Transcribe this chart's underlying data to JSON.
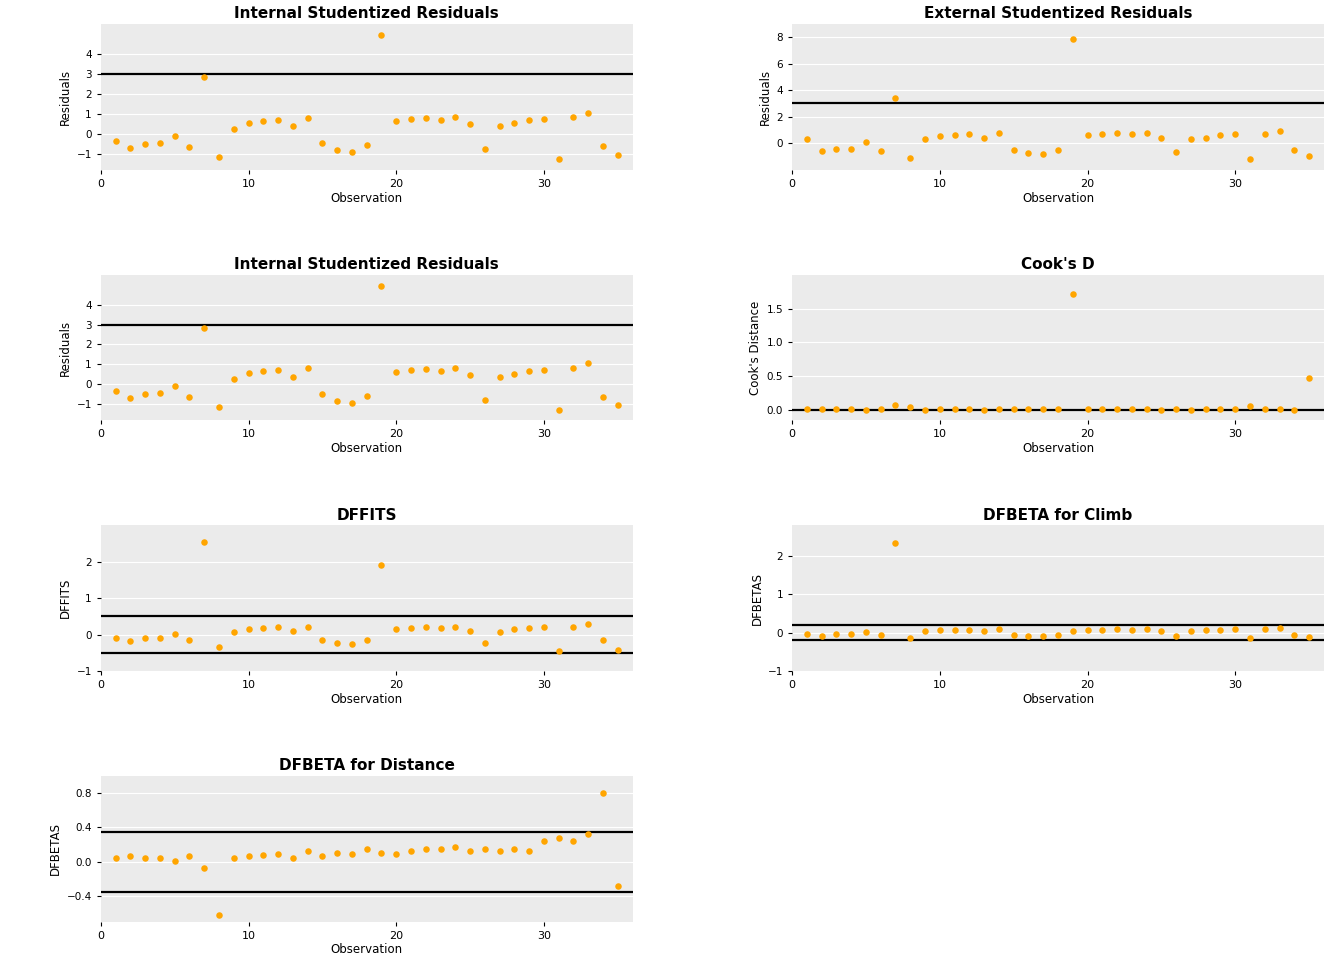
{
  "isr": [
    -0.35,
    -0.7,
    -0.5,
    -0.45,
    -0.1,
    -0.65,
    2.85,
    -1.15,
    0.25,
    0.55,
    0.65,
    0.7,
    0.38,
    0.8,
    -0.48,
    -0.82,
    -0.92,
    -0.58,
    4.95,
    0.62,
    0.72,
    0.78,
    0.68,
    0.82,
    0.48,
    -0.78,
    0.38,
    0.52,
    0.68,
    0.72,
    -1.28,
    0.82,
    1.05,
    -0.62,
    -1.05
  ],
  "esr": [
    0.3,
    -0.6,
    -0.4,
    -0.4,
    0.1,
    -0.6,
    3.45,
    -1.1,
    0.3,
    0.52,
    0.62,
    0.68,
    0.38,
    0.78,
    -0.48,
    -0.72,
    -0.8,
    -0.52,
    7.85,
    0.6,
    0.7,
    0.78,
    0.68,
    0.8,
    0.42,
    -0.7,
    0.32,
    0.42,
    0.62,
    0.68,
    -1.18,
    0.7,
    0.9,
    -0.52,
    -1.0
  ],
  "cooks": [
    0.01,
    0.02,
    0.01,
    0.01,
    0.0,
    0.02,
    0.08,
    0.05,
    0.0,
    0.01,
    0.01,
    0.01,
    0.0,
    0.01,
    0.01,
    0.02,
    0.02,
    0.01,
    1.72,
    0.01,
    0.01,
    0.01,
    0.01,
    0.01,
    0.0,
    0.02,
    0.0,
    0.01,
    0.01,
    0.01,
    0.06,
    0.01,
    0.02,
    0.0,
    0.48
  ],
  "dffits": [
    -0.1,
    -0.18,
    -0.1,
    -0.1,
    0.02,
    -0.16,
    2.55,
    -0.35,
    0.08,
    0.16,
    0.18,
    0.2,
    0.1,
    0.22,
    -0.15,
    -0.22,
    -0.25,
    -0.15,
    1.92,
    0.15,
    0.18,
    0.22,
    0.18,
    0.22,
    0.1,
    -0.22,
    0.08,
    0.15,
    0.18,
    0.2,
    -0.45,
    0.22,
    0.3,
    -0.15,
    -0.42
  ],
  "dfbeta_climb": [
    -0.04,
    -0.08,
    -0.04,
    -0.04,
    0.01,
    -0.07,
    2.35,
    -0.15,
    0.04,
    0.07,
    0.08,
    0.08,
    0.04,
    0.1,
    -0.06,
    -0.09,
    -0.1,
    -0.07,
    0.05,
    0.07,
    0.08,
    0.1,
    0.08,
    0.1,
    0.04,
    -0.08,
    0.04,
    0.07,
    0.08,
    0.09,
    -0.15,
    0.09,
    0.12,
    -0.06,
    -0.12
  ],
  "dfbeta_distance": [
    0.04,
    0.07,
    0.04,
    0.04,
    0.01,
    0.07,
    -0.08,
    -0.62,
    0.04,
    0.07,
    0.08,
    0.09,
    0.04,
    0.12,
    0.07,
    0.1,
    0.09,
    0.15,
    0.1,
    0.09,
    0.12,
    0.15,
    0.15,
    0.17,
    0.12,
    0.15,
    0.12,
    0.15,
    0.12,
    0.24,
    0.28,
    0.24,
    0.32,
    0.8,
    -0.28
  ],
  "dot_color": "#FFA500",
  "line_color": "#000000",
  "bg_color": "#EBEBEB",
  "grid_color": "#FFFFFF",
  "title_isr1": "Internal Studentized Residuals",
  "title_esr": "External Studentized Residuals",
  "title_isr2": "Internal Studentized Residuals",
  "title_cooks": "Cook's D",
  "title_dffits": "DFFITS",
  "title_dfbeta_climb": "DFBETA for Climb",
  "title_dfbeta_distance": "DFBETA for Distance",
  "ylabel_residuals": "Residuals",
  "ylabel_cooks": "Cook's Distance",
  "ylabel_dffits": "DFFITS",
  "ylabel_dfbetas": "DFBETAS",
  "xlabel": "Observation",
  "isr_hlines": [
    3.0
  ],
  "esr_hlines": [
    3.0
  ],
  "cooks_hlines": [
    0.0
  ],
  "dffits_hlines": [
    0.5,
    -0.5
  ],
  "dfbeta_climb_hlines": [
    0.2,
    -0.2
  ],
  "dfbeta_distance_hlines": [
    0.35,
    -0.35
  ],
  "isr_ylim": [
    -1.8,
    5.5
  ],
  "isr_yticks": [
    -1,
    0,
    1,
    2,
    3,
    4
  ],
  "esr_ylim": [
    -2.0,
    9.0
  ],
  "esr_yticks": [
    0,
    2,
    4,
    6,
    8
  ],
  "cooks_ylim": [
    -0.15,
    2.0
  ],
  "cooks_yticks": [
    0.0,
    0.5,
    1.0,
    1.5
  ],
  "dffits_ylim": [
    -0.8,
    3.0
  ],
  "dffits_yticks": [
    -1,
    0,
    1,
    2
  ],
  "dfbeta_climb_ylim": [
    -0.6,
    2.8
  ],
  "dfbeta_climb_yticks": [
    -1,
    0,
    1,
    2
  ],
  "dfbeta_distance_ylim": [
    -0.7,
    1.0
  ],
  "dfbeta_distance_yticks": [
    -0.4,
    0.0,
    0.4,
    0.8
  ]
}
